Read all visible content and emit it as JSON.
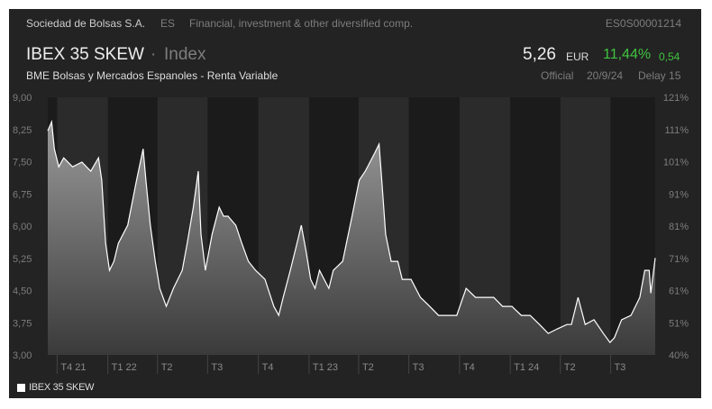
{
  "header": {
    "exchange": "Sociedad de Bolsas S.A.",
    "country": "ES",
    "sector": "Financial, investment & other diversified comp.",
    "isin": "ES0S00001214"
  },
  "instrument": {
    "name": "IBEX 35 SKEW",
    "separator": "·",
    "type": "Index",
    "market": "BME Bolsas y Mercados Espanoles - Renta Variable"
  },
  "quote": {
    "price": "5,26",
    "currency": "EUR",
    "change_pct": "11,44%",
    "change_abs": "0,54",
    "source": "Official",
    "date": "20/9/24",
    "delay": "Delay 15",
    "up_color": "#3fc33f"
  },
  "legend": {
    "label": "IBEX 35 SKEW"
  },
  "chart_data": {
    "type": "area",
    "ylim": [
      3.0,
      9.0
    ],
    "yticks": [
      "9,00",
      "8,25",
      "7,50",
      "6,75",
      "6,00",
      "5,25",
      "4,50",
      "3,75",
      "3,00"
    ],
    "y2ticks": [
      "121%",
      "111%",
      "101%",
      "91%",
      "81%",
      "71%",
      "61%",
      "51%",
      "40%"
    ],
    "xticks": [
      {
        "label": "T4 21",
        "date": "2021-10-01"
      },
      {
        "label": "T1 22",
        "date": "2022-01-01"
      },
      {
        "label": "T2",
        "date": "2022-04-01"
      },
      {
        "label": "T3",
        "date": "2022-07-01"
      },
      {
        "label": "T4",
        "date": "2022-10-01"
      },
      {
        "label": "T1 23",
        "date": "2023-01-01"
      },
      {
        "label": "T2",
        "date": "2023-04-01"
      },
      {
        "label": "T3",
        "date": "2023-07-01"
      },
      {
        "label": "T4",
        "date": "2023-10-01"
      },
      {
        "label": "T1 24",
        "date": "2024-01-01"
      },
      {
        "label": "T2",
        "date": "2024-04-01"
      },
      {
        "label": "T3",
        "date": "2024-07-01"
      }
    ],
    "xrange": [
      "2021-09-14",
      "2024-09-20"
    ],
    "grid": false,
    "legend": "bottom-left",
    "series": [
      {
        "name": "IBEX 35 SKEW",
        "color": "#ffffff",
        "points": [
          [
            "2021-09-14",
            8.22
          ],
          [
            "2021-09-21",
            8.43
          ],
          [
            "2021-09-26",
            7.8
          ],
          [
            "2021-10-04",
            7.38
          ],
          [
            "2021-10-13",
            7.59
          ],
          [
            "2021-10-29",
            7.38
          ],
          [
            "2021-11-15",
            7.49
          ],
          [
            "2021-12-01",
            7.28
          ],
          [
            "2021-12-15",
            7.59
          ],
          [
            "2021-12-21",
            7.07
          ],
          [
            "2021-12-28",
            5.6
          ],
          [
            "2022-01-04",
            4.97
          ],
          [
            "2022-01-12",
            5.18
          ],
          [
            "2022-01-20",
            5.6
          ],
          [
            "2022-02-06",
            6.02
          ],
          [
            "2022-02-22",
            7.07
          ],
          [
            "2022-03-06",
            7.8
          ],
          [
            "2022-03-11",
            7.07
          ],
          [
            "2022-03-19",
            6.02
          ],
          [
            "2022-03-28",
            5.18
          ],
          [
            "2022-04-05",
            4.55
          ],
          [
            "2022-04-17",
            4.13
          ],
          [
            "2022-04-30",
            4.55
          ],
          [
            "2022-05-16",
            4.97
          ],
          [
            "2022-05-25",
            5.6
          ],
          [
            "2022-06-05",
            6.44
          ],
          [
            "2022-06-14",
            7.28
          ],
          [
            "2022-06-19",
            5.81
          ],
          [
            "2022-06-27",
            4.97
          ],
          [
            "2022-07-09",
            5.81
          ],
          [
            "2022-07-22",
            6.44
          ],
          [
            "2022-07-30",
            6.23
          ],
          [
            "2022-08-07",
            6.23
          ],
          [
            "2022-08-21",
            6.02
          ],
          [
            "2022-09-01",
            5.6
          ],
          [
            "2022-09-13",
            5.18
          ],
          [
            "2022-09-26",
            4.97
          ],
          [
            "2022-10-13",
            4.76
          ],
          [
            "2022-10-29",
            4.13
          ],
          [
            "2022-11-07",
            3.92
          ],
          [
            "2022-11-15",
            4.34
          ],
          [
            "2022-11-28",
            4.97
          ],
          [
            "2022-12-10",
            5.6
          ],
          [
            "2022-12-18",
            6.02
          ],
          [
            "2022-12-27",
            5.39
          ],
          [
            "2023-01-04",
            4.76
          ],
          [
            "2023-01-12",
            4.55
          ],
          [
            "2023-01-20",
            4.97
          ],
          [
            "2023-02-06",
            4.55
          ],
          [
            "2023-02-14",
            4.97
          ],
          [
            "2023-03-03",
            5.18
          ],
          [
            "2023-03-20",
            6.23
          ],
          [
            "2023-04-02",
            7.07
          ],
          [
            "2023-04-13",
            7.28
          ],
          [
            "2023-04-30",
            7.7
          ],
          [
            "2023-05-08",
            7.91
          ],
          [
            "2023-05-13",
            7.07
          ],
          [
            "2023-05-20",
            5.81
          ],
          [
            "2023-05-30",
            5.18
          ],
          [
            "2023-06-11",
            5.18
          ],
          [
            "2023-06-19",
            4.76
          ],
          [
            "2023-07-05",
            4.76
          ],
          [
            "2023-07-22",
            4.34
          ],
          [
            "2023-08-08",
            4.13
          ],
          [
            "2023-08-24",
            3.92
          ],
          [
            "2023-09-10",
            3.92
          ],
          [
            "2023-09-26",
            3.92
          ],
          [
            "2023-10-13",
            4.55
          ],
          [
            "2023-10-30",
            4.34
          ],
          [
            "2023-11-15",
            4.34
          ],
          [
            "2023-12-02",
            4.34
          ],
          [
            "2023-12-18",
            4.13
          ],
          [
            "2024-01-04",
            4.13
          ],
          [
            "2024-01-21",
            3.92
          ],
          [
            "2024-02-06",
            3.92
          ],
          [
            "2024-02-23",
            3.71
          ],
          [
            "2024-03-10",
            3.5
          ],
          [
            "2024-03-27",
            3.61
          ],
          [
            "2024-04-13",
            3.71
          ],
          [
            "2024-04-21",
            3.71
          ],
          [
            "2024-05-03",
            4.34
          ],
          [
            "2024-05-16",
            3.71
          ],
          [
            "2024-06-01",
            3.82
          ],
          [
            "2024-06-18",
            3.5
          ],
          [
            "2024-06-30",
            3.29
          ],
          [
            "2024-07-08",
            3.4
          ],
          [
            "2024-07-21",
            3.82
          ],
          [
            "2024-08-07",
            3.92
          ],
          [
            "2024-08-23",
            4.34
          ],
          [
            "2024-09-01",
            4.97
          ],
          [
            "2024-09-09",
            4.97
          ],
          [
            "2024-09-12",
            4.44
          ],
          [
            "2024-09-16",
            4.86
          ],
          [
            "2024-09-20",
            5.26
          ]
        ]
      }
    ]
  }
}
